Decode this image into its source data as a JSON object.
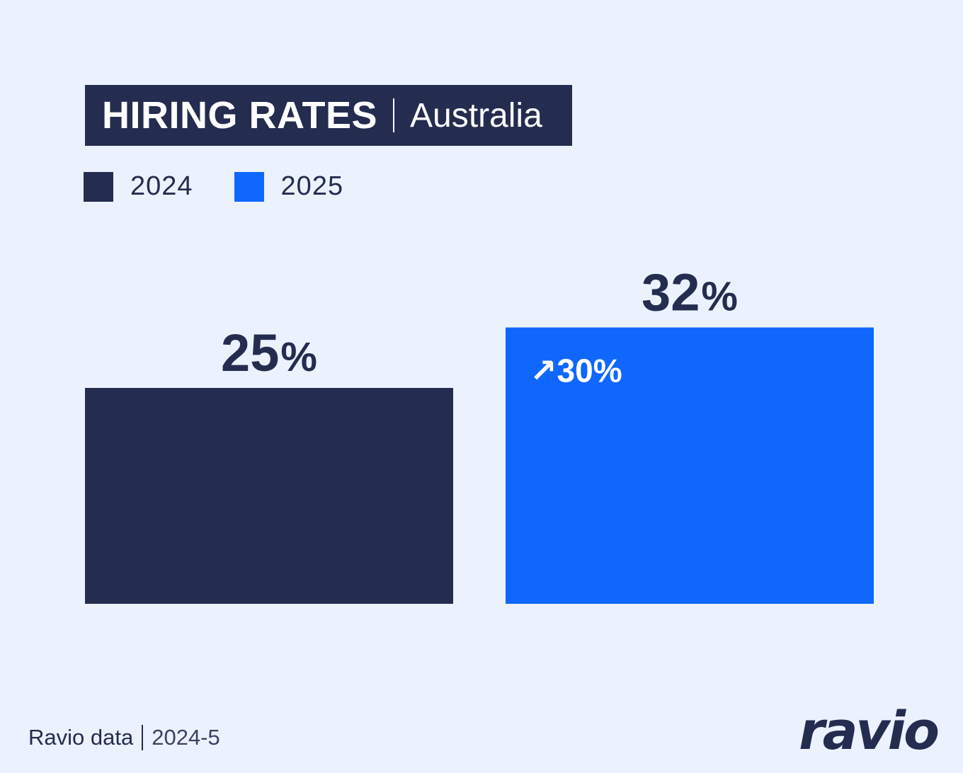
{
  "title": {
    "main": "HIRING RATES",
    "sub": "Australia"
  },
  "legend": [
    {
      "label": "2024",
      "color": "#242C50"
    },
    {
      "label": "2025",
      "color": "#0F67FE"
    }
  ],
  "chart_data": {
    "type": "bar",
    "categories": [
      "2024",
      "2025"
    ],
    "values": [
      25,
      32
    ],
    "value_labels": [
      "25%",
      "32%"
    ],
    "colors": [
      "#242C50",
      "#0F67FE"
    ],
    "annotations": [
      {
        "category": "2025",
        "arrow": "↗",
        "text": "30%"
      }
    ],
    "title": "HIRING RATES | Australia",
    "ylim": [
      0,
      40
    ],
    "grid": false,
    "legend_position": "top-left"
  },
  "footer": {
    "source": "Ravio data",
    "date": "2024-5"
  },
  "logo": {
    "text": "ravio"
  }
}
